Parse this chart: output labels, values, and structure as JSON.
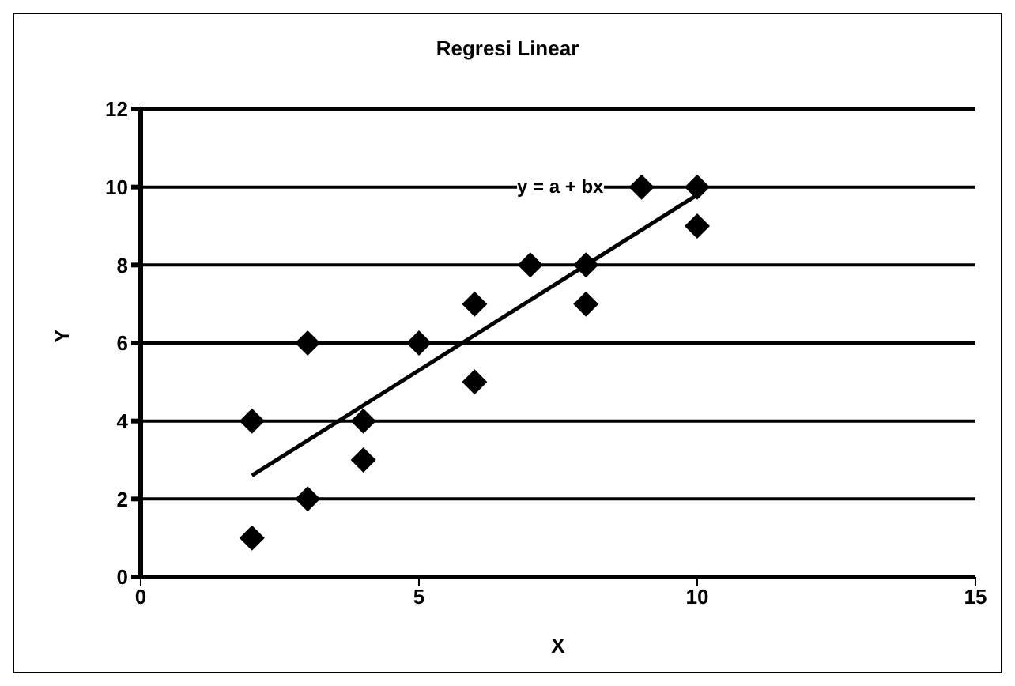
{
  "chart_data": {
    "type": "scatter",
    "title": "Regresi Linear",
    "xlabel": "X",
    "ylabel": "Y",
    "xlim": [
      0,
      15
    ],
    "xticks": [
      0,
      5,
      10,
      15
    ],
    "ylim": [
      0,
      12
    ],
    "yticks": [
      0,
      2,
      4,
      6,
      8,
      10,
      12
    ],
    "grid": "y",
    "marker": "diamond",
    "series": [
      {
        "color": "#000000",
        "x": [
          2,
          2,
          3,
          3,
          4,
          4,
          5,
          6,
          6,
          7,
          8,
          8,
          9,
          10,
          10
        ],
        "values": [
          1,
          4,
          2,
          6,
          3,
          4,
          6,
          5,
          7,
          8,
          7,
          8,
          10,
          9,
          10
        ]
      },
      {
        "type": "line",
        "color": "#000000",
        "x": [
          2,
          10
        ],
        "values": [
          2.6,
          9.8
        ],
        "marker": "none"
      }
    ],
    "annotations": [
      "y = a + bx"
    ]
  }
}
